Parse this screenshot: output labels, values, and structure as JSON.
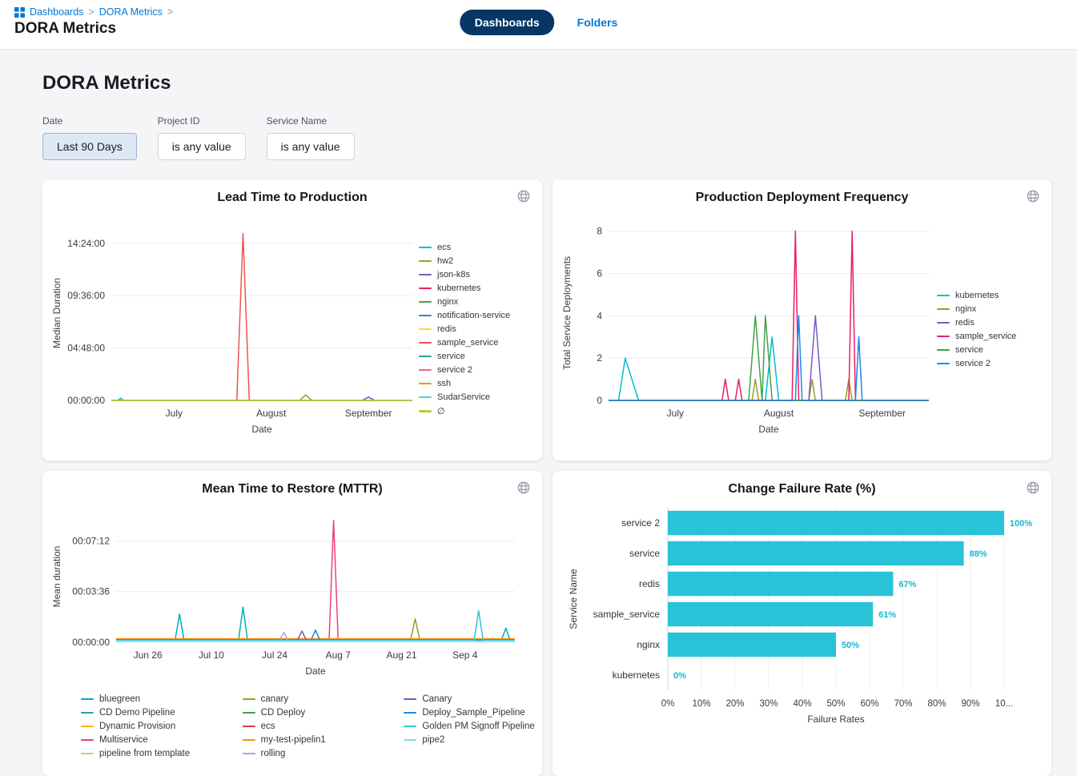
{
  "colors": {
    "accent": "#0278d5",
    "tab_pill_bg": "#063764",
    "page_bg": "#f4f5f7",
    "active_filter_bg": "#dde8f4"
  },
  "header": {
    "breadcrumb": {
      "items": [
        "Dashboards",
        "DORA Metrics"
      ],
      "separator": ">"
    },
    "title": "DORA Metrics",
    "tabs": [
      {
        "label": "Dashboards",
        "active": true
      },
      {
        "label": "Folders",
        "active": false
      }
    ]
  },
  "page": {
    "heading": "DORA Metrics"
  },
  "filters": [
    {
      "label": "Date",
      "value": "Last 90 Days",
      "active": true
    },
    {
      "label": "Project ID",
      "value": "is any value",
      "active": false
    },
    {
      "label": "Service Name",
      "value": "is any value",
      "active": false
    }
  ],
  "chart_data": [
    {
      "type": "line",
      "title": "Lead Time to Production",
      "xlabel": "Date",
      "ylabel": "Median Duration",
      "legend_position": "right",
      "x_domain": [
        0,
        96
      ],
      "x_ticks": [
        {
          "pos": 20,
          "label": "July"
        },
        {
          "pos": 51,
          "label": "August"
        },
        {
          "pos": 82,
          "label": "September"
        }
      ],
      "y_max": 16,
      "y_ticks": [
        {
          "pos": 0,
          "label": "00:00:00"
        },
        {
          "pos": 4.8,
          "label": "04:48:00"
        },
        {
          "pos": 9.6,
          "label": "09:36:00"
        },
        {
          "pos": 14.4,
          "label": "14:24:00"
        }
      ],
      "series": [
        {
          "name": "ecs",
          "color": "#00bcd4",
          "points": [
            [
              0,
              0
            ],
            [
              2,
              0
            ],
            [
              3,
              0.2
            ],
            [
              4,
              0
            ],
            [
              96,
              0
            ]
          ]
        },
        {
          "name": "hw2",
          "color": "#9e9d24",
          "points": [
            [
              0,
              0
            ],
            [
              60,
              0
            ],
            [
              62,
              0.5
            ],
            [
              64,
              0
            ],
            [
              96,
              0
            ]
          ]
        },
        {
          "name": "json-k8s",
          "color": "#7e57c2",
          "points": [
            [
              0,
              0
            ],
            [
              80,
              0
            ],
            [
              82,
              0.3
            ],
            [
              84,
              0
            ],
            [
              96,
              0
            ]
          ]
        },
        {
          "name": "kubernetes",
          "color": "#e91e63",
          "points": [
            [
              0,
              0
            ],
            [
              96,
              0
            ]
          ]
        },
        {
          "name": "nginx",
          "color": "#43a047",
          "points": [
            [
              0,
              0
            ],
            [
              96,
              0
            ]
          ]
        },
        {
          "name": "notification-service",
          "color": "#1e88e5",
          "points": [
            [
              0,
              0
            ],
            [
              96,
              0
            ]
          ]
        },
        {
          "name": "redis",
          "color": "#fdd835",
          "points": [
            [
              0,
              0
            ],
            [
              96,
              0
            ]
          ]
        },
        {
          "name": "sample_service",
          "color": "#ef5350",
          "points": [
            [
              0,
              0
            ],
            [
              40,
              0
            ],
            [
              42,
              15.3
            ],
            [
              44,
              0
            ],
            [
              96,
              0
            ]
          ]
        },
        {
          "name": "service",
          "color": "#26a69a",
          "points": [
            [
              0,
              0
            ],
            [
              96,
              0
            ]
          ]
        },
        {
          "name": "service 2",
          "color": "#f06292",
          "points": [
            [
              0,
              0
            ],
            [
              96,
              0
            ]
          ]
        },
        {
          "name": "ssh",
          "color": "#fb8c00",
          "points": [
            [
              0,
              0
            ],
            [
              96,
              0
            ]
          ]
        },
        {
          "name": "SudarService",
          "color": "#4dd0e1",
          "points": [
            [
              0,
              0
            ],
            [
              96,
              0
            ]
          ]
        },
        {
          "name": "∅",
          "color": "#c0ca33",
          "points": [
            [
              0,
              0
            ],
            [
              96,
              0
            ]
          ]
        }
      ]
    },
    {
      "type": "line",
      "title": "Production Deployment Frequency",
      "xlabel": "Date",
      "ylabel": "Total Service Deployments",
      "legend_position": "right",
      "x_domain": [
        0,
        96
      ],
      "x_ticks": [
        {
          "pos": 20,
          "label": "July"
        },
        {
          "pos": 51,
          "label": "August"
        },
        {
          "pos": 82,
          "label": "September"
        }
      ],
      "y_max": 8.25,
      "y_ticks": [
        {
          "pos": 0,
          "label": "0"
        },
        {
          "pos": 2,
          "label": "2"
        },
        {
          "pos": 4,
          "label": "4"
        },
        {
          "pos": 6,
          "label": "6"
        },
        {
          "pos": 8,
          "label": "8"
        }
      ],
      "series": [
        {
          "name": "kubernetes",
          "color": "#00bcd4",
          "points": [
            [
              0,
              0
            ],
            [
              3,
              0
            ],
            [
              5,
              2
            ],
            [
              9,
              0
            ],
            [
              47,
              0
            ],
            [
              49,
              3
            ],
            [
              51,
              0
            ],
            [
              96,
              0
            ]
          ]
        },
        {
          "name": "nginx",
          "color": "#9e9d24",
          "points": [
            [
              0,
              0
            ],
            [
              43,
              0
            ],
            [
              44,
              1
            ],
            [
              45,
              0
            ],
            [
              60,
              0
            ],
            [
              61,
              1
            ],
            [
              62,
              0
            ],
            [
              71,
              0
            ],
            [
              72,
              1
            ],
            [
              73,
              0
            ],
            [
              96,
              0
            ]
          ]
        },
        {
          "name": "redis",
          "color": "#7e57c2",
          "points": [
            [
              0,
              0
            ],
            [
              60,
              0
            ],
            [
              62,
              4
            ],
            [
              64,
              0
            ],
            [
              96,
              0
            ]
          ]
        },
        {
          "name": "sample_service",
          "color": "#e91e63",
          "points": [
            [
              0,
              0
            ],
            [
              34,
              0
            ],
            [
              35,
              1
            ],
            [
              36,
              0
            ],
            [
              38,
              0
            ],
            [
              39,
              1
            ],
            [
              40,
              0
            ],
            [
              55,
              0
            ],
            [
              56,
              8
            ],
            [
              57,
              0
            ],
            [
              72,
              0
            ],
            [
              73,
              8
            ],
            [
              74,
              0
            ],
            [
              96,
              0
            ]
          ]
        },
        {
          "name": "service",
          "color": "#43a047",
          "points": [
            [
              0,
              0
            ],
            [
              42,
              0
            ],
            [
              44,
              4
            ],
            [
              46,
              0
            ],
            [
              47,
              4
            ],
            [
              49,
              0
            ],
            [
              96,
              0
            ]
          ]
        },
        {
          "name": "service 2",
          "color": "#1e88e5",
          "points": [
            [
              0,
              0
            ],
            [
              56,
              0
            ],
            [
              57,
              4
            ],
            [
              58,
              0
            ],
            [
              74,
              0
            ],
            [
              75,
              3
            ],
            [
              76,
              0
            ],
            [
              96,
              0
            ]
          ]
        }
      ]
    },
    {
      "type": "line",
      "title": "Mean Time to Restore (MTTR)",
      "xlabel": "Date",
      "ylabel": "Mean duration",
      "legend_position": "bottom",
      "x_domain": [
        0,
        88
      ],
      "x_ticks": [
        {
          "pos": 7,
          "label": "Jun 26"
        },
        {
          "pos": 21,
          "label": "Jul 10"
        },
        {
          "pos": 35,
          "label": "Jul 24"
        },
        {
          "pos": 49,
          "label": "Aug 7"
        },
        {
          "pos": 63,
          "label": "Aug 21"
        },
        {
          "pos": 77,
          "label": "Sep 4"
        }
      ],
      "y_max": 560,
      "y_ticks": [
        {
          "pos": 0,
          "label": "00:00:00"
        },
        {
          "pos": 216,
          "label": "00:03:36"
        },
        {
          "pos": 432,
          "label": "00:07:12"
        }
      ],
      "series": [
        {
          "name": "bluegreen",
          "color": "#00acc1",
          "points": [
            [
              0,
              8
            ],
            [
              13,
              8
            ],
            [
              14,
              120
            ],
            [
              15,
              8
            ],
            [
              27,
              8
            ],
            [
              28,
              150
            ],
            [
              29,
              8
            ],
            [
              85,
              8
            ],
            [
              86,
              60
            ],
            [
              87,
              8
            ],
            [
              88,
              8
            ]
          ]
        },
        {
          "name": "CD Demo Pipeline",
          "color": "#26a69a",
          "points": [
            [
              0,
              10
            ],
            [
              88,
              10
            ]
          ]
        },
        {
          "name": "Dynamic Provision",
          "color": "#ffb300",
          "points": [
            [
              0,
              13
            ],
            [
              88,
              13
            ]
          ]
        },
        {
          "name": "Multiservice",
          "color": "#ec407a",
          "points": [
            [
              30,
              8
            ],
            [
              47,
              8
            ],
            [
              48,
              520
            ],
            [
              49,
              8
            ],
            [
              62,
              8
            ]
          ]
        },
        {
          "name": "pipeline from template",
          "color": "#aed581",
          "points": [
            [
              0,
              6
            ],
            [
              88,
              6
            ]
          ]
        },
        {
          "name": "canary",
          "color": "#9e9d24",
          "points": [
            [
              0,
              11
            ],
            [
              65,
              11
            ],
            [
              66,
              100
            ],
            [
              67,
              11
            ],
            [
              88,
              11
            ]
          ]
        },
        {
          "name": "CD Deploy",
          "color": "#43a047",
          "points": [
            [
              0,
              9
            ],
            [
              88,
              9
            ]
          ]
        },
        {
          "name": "ecs",
          "color": "#e53935",
          "points": [
            [
              0,
              10
            ],
            [
              88,
              10
            ]
          ]
        },
        {
          "name": "my-test-pipelin1",
          "color": "#fb8c00",
          "points": [
            [
              0,
              15
            ],
            [
              88,
              15
            ]
          ]
        },
        {
          "name": "rolling",
          "color": "#b39ddb",
          "points": [
            [
              0,
              8
            ],
            [
              36,
              8
            ],
            [
              37,
              42
            ],
            [
              38,
              8
            ],
            [
              88,
              8
            ]
          ]
        },
        {
          "name": "Canary",
          "color": "#7e57c2",
          "points": [
            [
              0,
              8
            ],
            [
              40,
              8
            ],
            [
              41,
              48
            ],
            [
              42,
              8
            ],
            [
              88,
              8
            ]
          ]
        },
        {
          "name": "Deploy_Sample_Pipeline",
          "color": "#1e88e5",
          "points": [
            [
              0,
              8
            ],
            [
              43,
              8
            ],
            [
              44,
              52
            ],
            [
              45,
              8
            ],
            [
              88,
              8
            ]
          ]
        },
        {
          "name": "Golden PM Signoff Pipeline",
          "color": "#26c6da",
          "points": [
            [
              0,
              8
            ],
            [
              79,
              8
            ],
            [
              80,
              135
            ],
            [
              81,
              8
            ],
            [
              88,
              8
            ]
          ]
        },
        {
          "name": "pipe2",
          "color": "#80deea",
          "points": [
            [
              0,
              5
            ],
            [
              88,
              5
            ]
          ]
        }
      ]
    },
    {
      "type": "bar",
      "orientation": "horizontal",
      "title": "Change Failure Rate (%)",
      "xlabel": "Failure Rates",
      "ylabel": "Service Name",
      "categories": [
        "service 2",
        "service",
        "redis",
        "sample_service",
        "nginx",
        "kubernetes"
      ],
      "values": [
        100,
        88,
        67,
        61,
        50,
        0
      ],
      "value_labels": [
        "100%",
        "88%",
        "67%",
        "61%",
        "50%",
        "0%"
      ],
      "x_max": 100,
      "x_ticks": [
        {
          "pos": 0,
          "label": "0%"
        },
        {
          "pos": 10,
          "label": "10%"
        },
        {
          "pos": 20,
          "label": "20%"
        },
        {
          "pos": 30,
          "label": "30%"
        },
        {
          "pos": 40,
          "label": "40%"
        },
        {
          "pos": 50,
          "label": "50%"
        },
        {
          "pos": 60,
          "label": "60%"
        },
        {
          "pos": 70,
          "label": "70%"
        },
        {
          "pos": 80,
          "label": "80%"
        },
        {
          "pos": 90,
          "label": "90%"
        },
        {
          "pos": 100,
          "label": "10..."
        }
      ],
      "bar_color": "#29c3d7",
      "value_label_color": "#18b6cf"
    }
  ]
}
